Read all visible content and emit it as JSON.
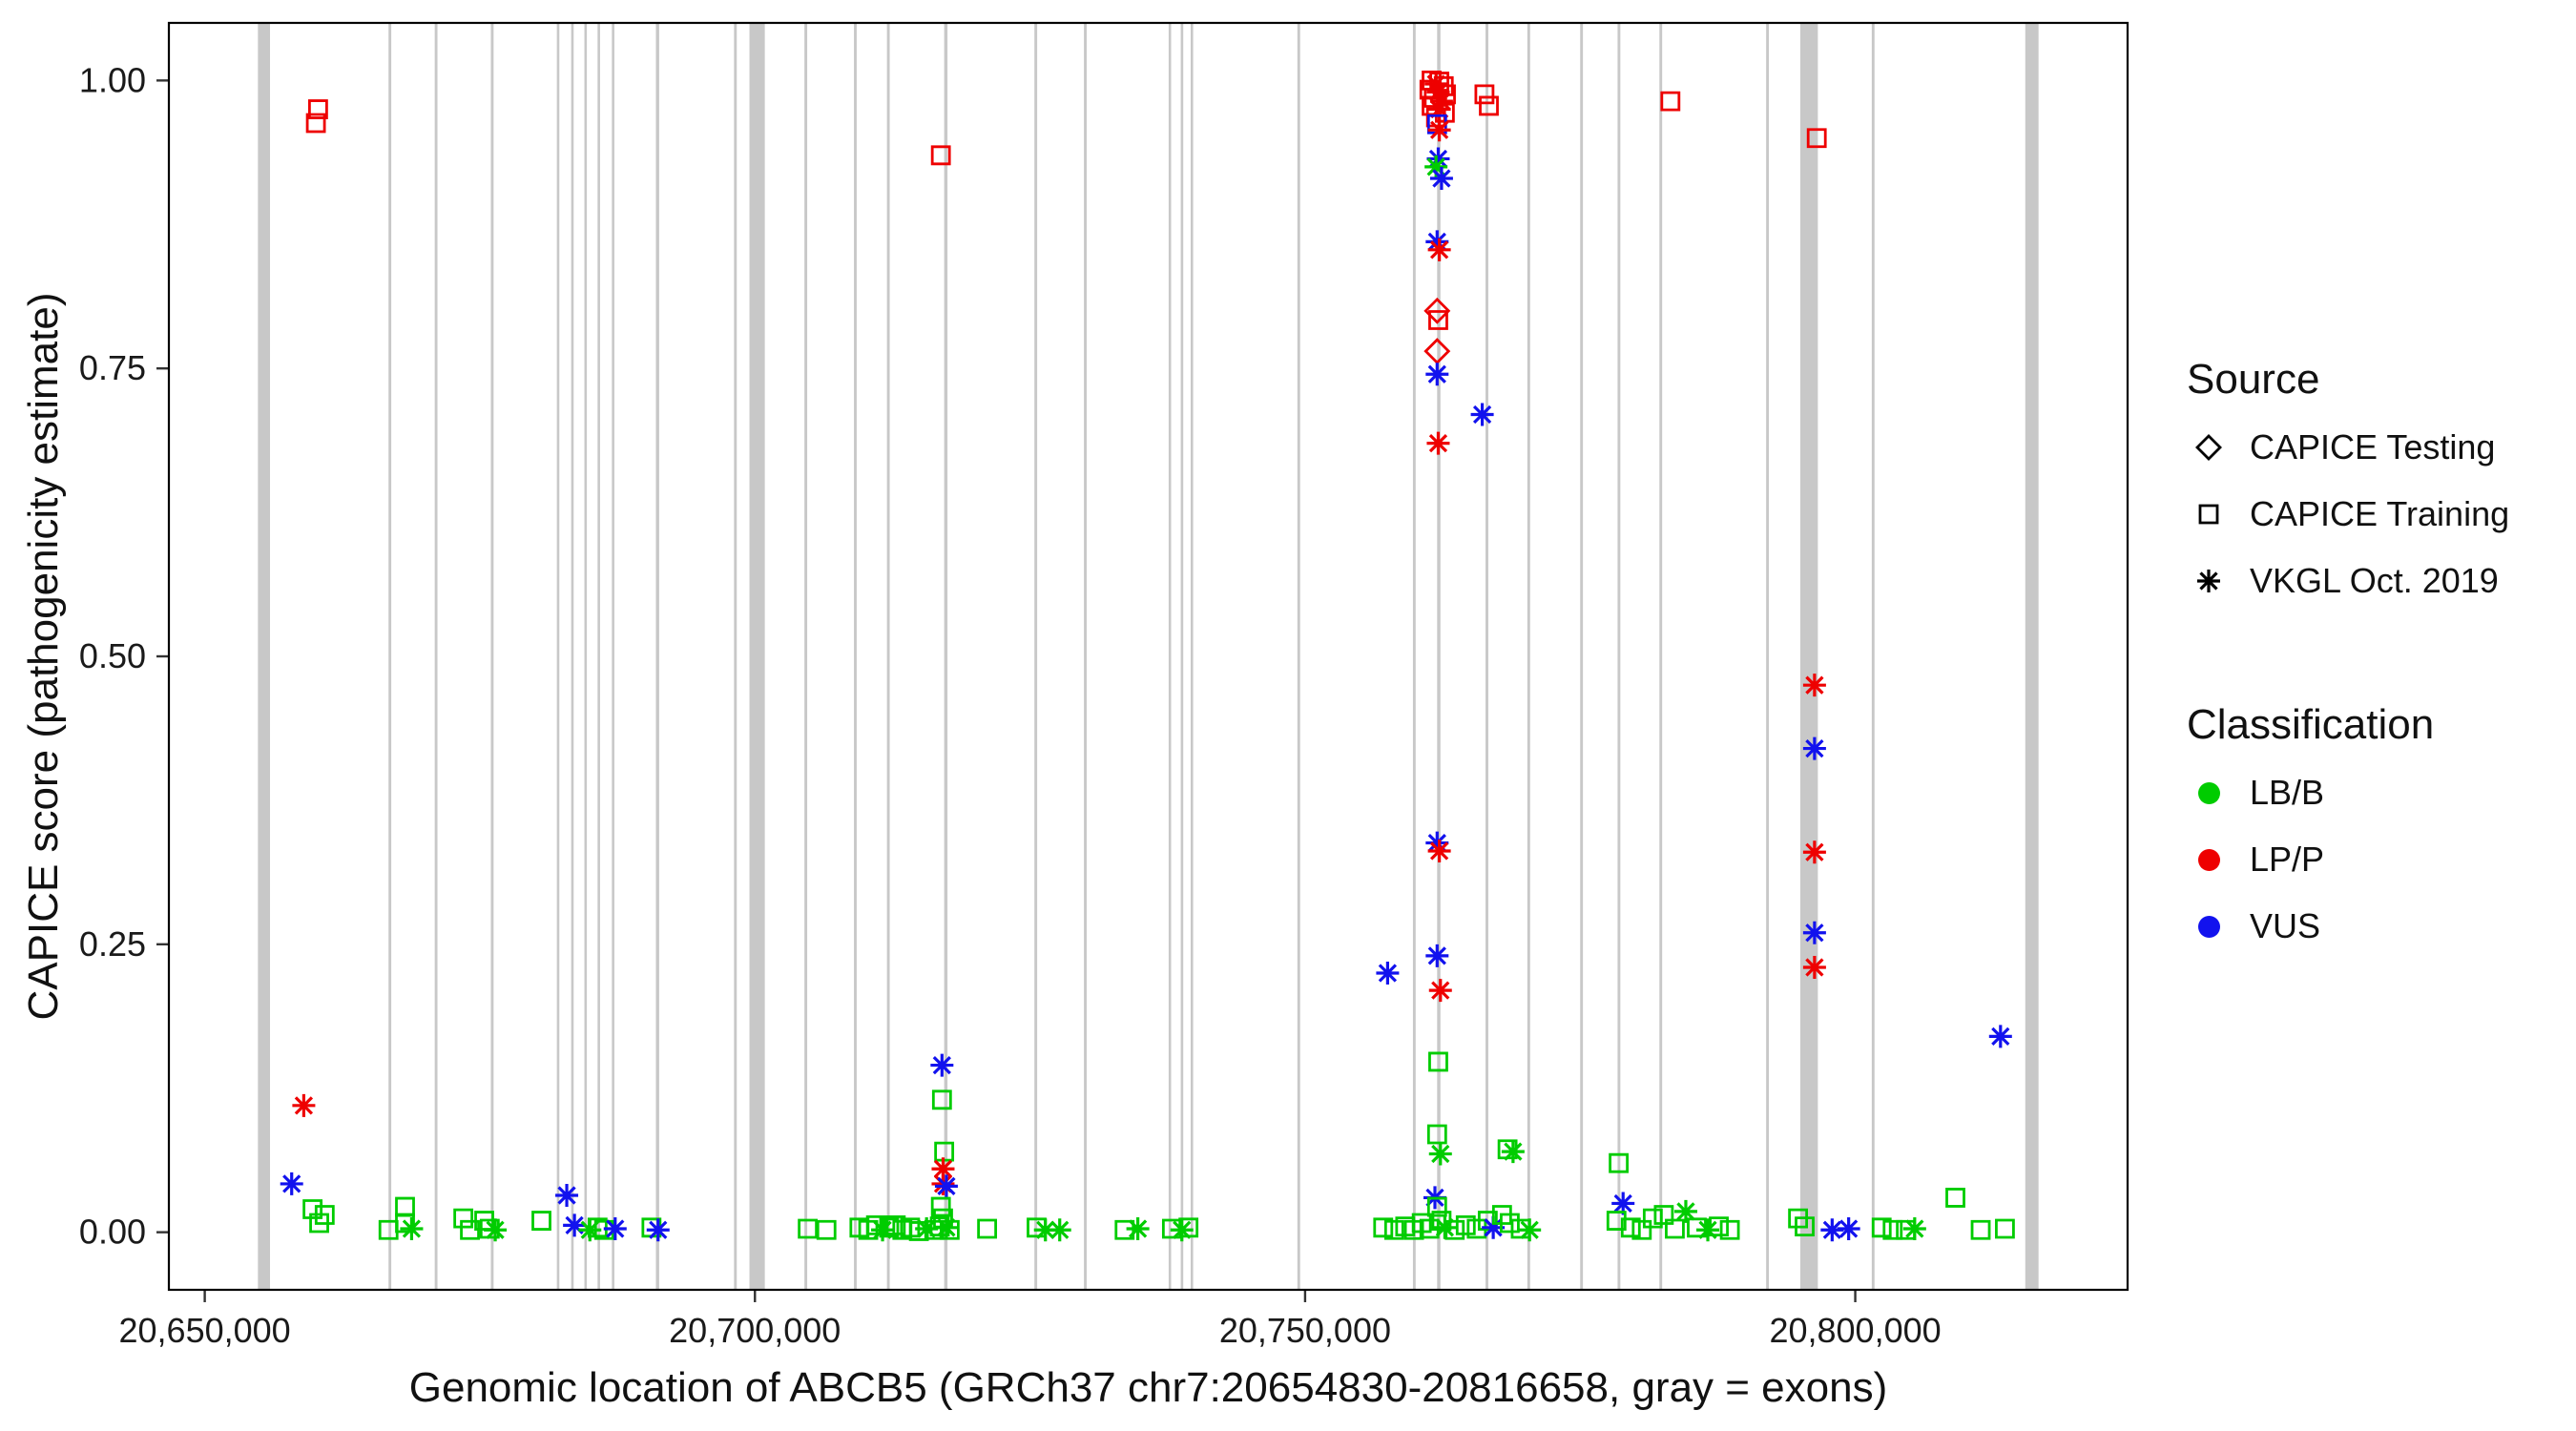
{
  "chart_data": {
    "type": "scatter",
    "title": "",
    "xlabel": "Genomic location of ABCB5 (GRCh37 chr7:20654830-20816658, gray = exons)",
    "ylabel": "CAPICE score (pathogenicity estimate)",
    "xlim": [
      20646739,
      20824749
    ],
    "ylim": [
      -0.05,
      1.05
    ],
    "grid": false,
    "legend_position": "right",
    "x_ticks": [
      {
        "value": 20650000,
        "label": "20,650,000"
      },
      {
        "value": 20700000,
        "label": "20,700,000"
      },
      {
        "value": 20750000,
        "label": "20,750,000"
      },
      {
        "value": 20800000,
        "label": "20,800,000"
      }
    ],
    "y_ticks": [
      {
        "value": 0.0,
        "label": "0.00"
      },
      {
        "value": 0.25,
        "label": "0.25"
      },
      {
        "value": 0.5,
        "label": "0.50"
      },
      {
        "value": 0.75,
        "label": "0.75"
      },
      {
        "value": 1.0,
        "label": "1.00"
      }
    ],
    "exon_color": "#c8c8c8",
    "exons_format": [
      "start_position",
      "width_bp"
    ],
    "exons": [
      [
        20654830,
        1100
      ],
      [
        20666700,
        250
      ],
      [
        20670900,
        250
      ],
      [
        20676000,
        250
      ],
      [
        20682000,
        220
      ],
      [
        20683300,
        220
      ],
      [
        20684500,
        220
      ],
      [
        20685700,
        220
      ],
      [
        20687000,
        220
      ],
      [
        20691000,
        300
      ],
      [
        20698100,
        250
      ],
      [
        20699500,
        1400
      ],
      [
        20704500,
        250
      ],
      [
        20709000,
        250
      ],
      [
        20712000,
        250
      ],
      [
        20717200,
        300
      ],
      [
        20725400,
        250
      ],
      [
        20729900,
        250
      ],
      [
        20737600,
        220
      ],
      [
        20738700,
        220
      ],
      [
        20739600,
        220
      ],
      [
        20749300,
        250
      ],
      [
        20759800,
        250
      ],
      [
        20762000,
        300
      ],
      [
        20766400,
        250
      ],
      [
        20770200,
        250
      ],
      [
        20775000,
        250
      ],
      [
        20778400,
        250
      ],
      [
        20782200,
        250
      ],
      [
        20791900,
        250
      ],
      [
        20795000,
        1600
      ],
      [
        20801500,
        250
      ],
      [
        20815450,
        1208
      ]
    ],
    "source_codes": {
      "d": "CAPICE Testing",
      "s": "CAPICE Training",
      "a": "VKGL Oct. 2019"
    },
    "source_shapes": {
      "d": "diamond",
      "s": "square",
      "a": "asterisk"
    },
    "classification_codes": {
      "g": "LB/B",
      "r": "LP/P",
      "b": "VUS"
    },
    "classification_colors": {
      "g": "#00cc00",
      "r": "#ee0000",
      "b": "#1212ee"
    },
    "points_format": [
      "position",
      "score",
      "source",
      "classification"
    ],
    "points": [
      [
        20657900,
        0.042,
        "a",
        "b"
      ],
      [
        20659000,
        0.11,
        "a",
        "r"
      ],
      [
        20659800,
        0.02,
        "s",
        "g"
      ],
      [
        20660300,
        0.975,
        "s",
        "r"
      ],
      [
        20660100,
        0.963,
        "s",
        "r"
      ],
      [
        20660400,
        0.008,
        "s",
        "g"
      ],
      [
        20660900,
        0.015,
        "s",
        "g"
      ],
      [
        20666700,
        0.002,
        "s",
        "g"
      ],
      [
        20668200,
        0.022,
        "s",
        "g"
      ],
      [
        20668200,
        0.008,
        "s",
        "g"
      ],
      [
        20668800,
        0.003,
        "a",
        "g"
      ],
      [
        20673500,
        0.012,
        "s",
        "g"
      ],
      [
        20674100,
        0.002,
        "s",
        "g"
      ],
      [
        20675400,
        0.01,
        "s",
        "g"
      ],
      [
        20675900,
        0.003,
        "s",
        "g"
      ],
      [
        20676400,
        0.002,
        "a",
        "g"
      ],
      [
        20680600,
        0.01,
        "s",
        "g"
      ],
      [
        20682900,
        0.032,
        "a",
        "b"
      ],
      [
        20683600,
        0.006,
        "a",
        "b"
      ],
      [
        20685000,
        0.002,
        "a",
        "g"
      ],
      [
        20685700,
        0.004,
        "s",
        "g"
      ],
      [
        20686300,
        0.002,
        "s",
        "g"
      ],
      [
        20687300,
        0.003,
        "a",
        "b"
      ],
      [
        20690600,
        0.004,
        "s",
        "g"
      ],
      [
        20691200,
        0.002,
        "a",
        "b"
      ],
      [
        20704800,
        0.003,
        "s",
        "g"
      ],
      [
        20706500,
        0.002,
        "s",
        "g"
      ],
      [
        20709500,
        0.004,
        "s",
        "g"
      ],
      [
        20710300,
        0.002,
        "s",
        "g"
      ],
      [
        20711000,
        0.006,
        "s",
        "g"
      ],
      [
        20711600,
        0.002,
        "a",
        "g"
      ],
      [
        20712200,
        0.004,
        "s",
        "g"
      ],
      [
        20712800,
        0.006,
        "s",
        "g"
      ],
      [
        20713400,
        0.002,
        "s",
        "g"
      ],
      [
        20714100,
        0.004,
        "s",
        "g"
      ],
      [
        20714900,
        0.001,
        "s",
        "g"
      ],
      [
        20715600,
        0.003,
        "a",
        "g"
      ],
      [
        20716300,
        0.002,
        "s",
        "g"
      ],
      [
        20716900,
        0.935,
        "s",
        "r"
      ],
      [
        20717000,
        0.145,
        "a",
        "b"
      ],
      [
        20717000,
        0.115,
        "s",
        "g"
      ],
      [
        20717200,
        0.07,
        "s",
        "g"
      ],
      [
        20717100,
        0.055,
        "a",
        "r"
      ],
      [
        20717100,
        0.042,
        "a",
        "r"
      ],
      [
        20717400,
        0.04,
        "a",
        "b"
      ],
      [
        20716900,
        0.022,
        "s",
        "g"
      ],
      [
        20717100,
        0.012,
        "s",
        "g"
      ],
      [
        20716800,
        0.005,
        "s",
        "g"
      ],
      [
        20717400,
        0.004,
        "a",
        "g"
      ],
      [
        20717700,
        0.002,
        "s",
        "g"
      ],
      [
        20721100,
        0.003,
        "s",
        "g"
      ],
      [
        20725600,
        0.004,
        "s",
        "g"
      ],
      [
        20726400,
        0.002,
        "a",
        "g"
      ],
      [
        20727700,
        0.002,
        "a",
        "g"
      ],
      [
        20733600,
        0.002,
        "s",
        "g"
      ],
      [
        20734800,
        0.003,
        "a",
        "g"
      ],
      [
        20737900,
        0.003,
        "s",
        "g"
      ],
      [
        20738800,
        0.002,
        "a",
        "g"
      ],
      [
        20739400,
        0.004,
        "s",
        "g"
      ],
      [
        20761500,
        1.0,
        "s",
        "r"
      ],
      [
        20762200,
        0.999,
        "s",
        "r"
      ],
      [
        20761900,
        0.997,
        "a",
        "r"
      ],
      [
        20762600,
        0.995,
        "s",
        "r"
      ],
      [
        20761300,
        0.992,
        "s",
        "r"
      ],
      [
        20762100,
        0.99,
        "a",
        "r"
      ],
      [
        20762800,
        0.988,
        "s",
        "r"
      ],
      [
        20761700,
        0.985,
        "s",
        "r"
      ],
      [
        20762400,
        0.982,
        "a",
        "r"
      ],
      [
        20761500,
        0.978,
        "s",
        "r"
      ],
      [
        20762200,
        0.975,
        "a",
        "r"
      ],
      [
        20762700,
        0.972,
        "s",
        "r"
      ],
      [
        20761900,
        0.968,
        "s",
        "r"
      ],
      [
        20766300,
        0.988,
        "s",
        "r"
      ],
      [
        20766700,
        0.978,
        "s",
        "r"
      ],
      [
        20762000,
        0.962,
        "s",
        "b"
      ],
      [
        20762200,
        0.957,
        "a",
        "r"
      ],
      [
        20762100,
        0.932,
        "a",
        "b"
      ],
      [
        20761900,
        0.925,
        "a",
        "g"
      ],
      [
        20762400,
        0.915,
        "a",
        "b"
      ],
      [
        20762000,
        0.86,
        "a",
        "b"
      ],
      [
        20762200,
        0.853,
        "a",
        "r"
      ],
      [
        20762000,
        0.8,
        "d",
        "r"
      ],
      [
        20762100,
        0.792,
        "s",
        "r"
      ],
      [
        20762000,
        0.765,
        "d",
        "r"
      ],
      [
        20762000,
        0.745,
        "a",
        "b"
      ],
      [
        20766100,
        0.71,
        "a",
        "b"
      ],
      [
        20762100,
        0.685,
        "a",
        "r"
      ],
      [
        20762000,
        0.338,
        "a",
        "b"
      ],
      [
        20762200,
        0.331,
        "a",
        "r"
      ],
      [
        20762000,
        0.24,
        "a",
        "b"
      ],
      [
        20757500,
        0.225,
        "a",
        "b"
      ],
      [
        20762300,
        0.21,
        "a",
        "r"
      ],
      [
        20762100,
        0.148,
        "s",
        "g"
      ],
      [
        20762000,
        0.085,
        "s",
        "g"
      ],
      [
        20762300,
        0.068,
        "a",
        "g"
      ],
      [
        20768400,
        0.072,
        "s",
        "g"
      ],
      [
        20768900,
        0.07,
        "a",
        "g"
      ],
      [
        20757100,
        0.004,
        "s",
        "g"
      ],
      [
        20758100,
        0.002,
        "s",
        "g"
      ],
      [
        20759100,
        0.005,
        "s",
        "g"
      ],
      [
        20759900,
        0.002,
        "s",
        "g"
      ],
      [
        20760600,
        0.008,
        "s",
        "g"
      ],
      [
        20761300,
        0.003,
        "s",
        "g"
      ],
      [
        20761800,
        0.03,
        "a",
        "b"
      ],
      [
        20762000,
        0.022,
        "s",
        "g"
      ],
      [
        20762400,
        0.01,
        "s",
        "g"
      ],
      [
        20762700,
        0.004,
        "a",
        "g"
      ],
      [
        20763600,
        0.002,
        "s",
        "g"
      ],
      [
        20764600,
        0.006,
        "s",
        "g"
      ],
      [
        20765600,
        0.003,
        "s",
        "g"
      ],
      [
        20766600,
        0.01,
        "s",
        "g"
      ],
      [
        20767100,
        0.004,
        "a",
        "b"
      ],
      [
        20767900,
        0.015,
        "s",
        "g"
      ],
      [
        20768600,
        0.008,
        "s",
        "g"
      ],
      [
        20769600,
        0.003,
        "s",
        "g"
      ],
      [
        20770400,
        0.002,
        "a",
        "g"
      ],
      [
        20783200,
        0.982,
        "s",
        "r"
      ],
      [
        20778500,
        0.06,
        "s",
        "g"
      ],
      [
        20778900,
        0.025,
        "a",
        "b"
      ],
      [
        20778300,
        0.01,
        "s",
        "g"
      ],
      [
        20779600,
        0.004,
        "s",
        "g"
      ],
      [
        20780600,
        0.002,
        "s",
        "g"
      ],
      [
        20781600,
        0.012,
        "s",
        "g"
      ],
      [
        20782600,
        0.015,
        "s",
        "g"
      ],
      [
        20783600,
        0.003,
        "s",
        "g"
      ],
      [
        20784600,
        0.018,
        "a",
        "g"
      ],
      [
        20785600,
        0.004,
        "s",
        "g"
      ],
      [
        20786600,
        0.002,
        "a",
        "g"
      ],
      [
        20787600,
        0.005,
        "s",
        "g"
      ],
      [
        20788600,
        0.002,
        "s",
        "g"
      ],
      [
        20796500,
        0.95,
        "s",
        "r"
      ],
      [
        20796300,
        0.475,
        "a",
        "r"
      ],
      [
        20796300,
        0.42,
        "a",
        "b"
      ],
      [
        20796300,
        0.33,
        "a",
        "r"
      ],
      [
        20796300,
        0.26,
        "a",
        "b"
      ],
      [
        20796300,
        0.23,
        "a",
        "r"
      ],
      [
        20794800,
        0.012,
        "s",
        "g"
      ],
      [
        20795400,
        0.005,
        "s",
        "g"
      ],
      [
        20797900,
        0.002,
        "a",
        "b"
      ],
      [
        20799400,
        0.003,
        "a",
        "b"
      ],
      [
        20802400,
        0.004,
        "s",
        "g"
      ],
      [
        20803400,
        0.002,
        "s",
        "g"
      ],
      [
        20804600,
        0.002,
        "s",
        "g"
      ],
      [
        20805400,
        0.003,
        "a",
        "g"
      ],
      [
        20809100,
        0.03,
        "s",
        "g"
      ],
      [
        20811400,
        0.002,
        "s",
        "g"
      ],
      [
        20813200,
        0.17,
        "a",
        "b"
      ],
      [
        20813600,
        0.003,
        "s",
        "g"
      ]
    ]
  },
  "legend": {
    "source_title": "Source",
    "source_items": [
      {
        "label": "CAPICE Testing",
        "shape": "diamond"
      },
      {
        "label": "CAPICE Training",
        "shape": "square"
      },
      {
        "label": "VKGL Oct. 2019",
        "shape": "asterisk"
      }
    ],
    "classification_title": "Classification",
    "classification_items": [
      {
        "label": "LB/B",
        "color": "#00cc00"
      },
      {
        "label": "LP/P",
        "color": "#ee0000"
      },
      {
        "label": "VUS",
        "color": "#1212ee"
      }
    ]
  }
}
